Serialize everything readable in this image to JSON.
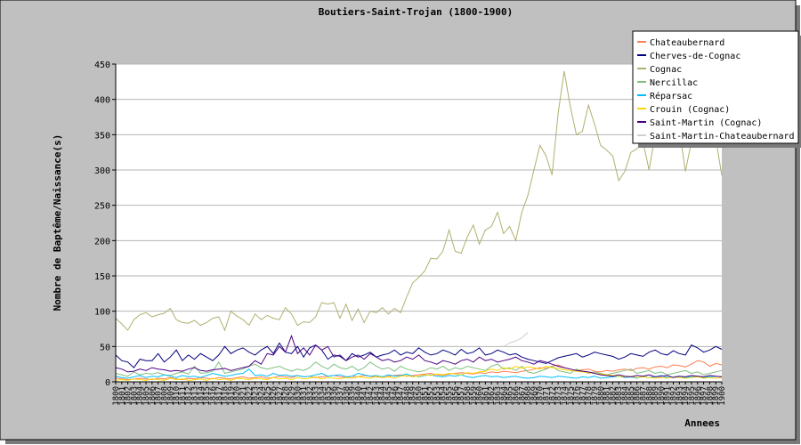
{
  "chart_data": {
    "type": "line",
    "title": "Boutiers-Saint-Trojan (1800-1900)",
    "xlabel": "Annees",
    "ylabel": "Nombre de Baptême/Naissance(s)",
    "ylim": [
      0,
      450
    ],
    "yticks": [
      0,
      50,
      100,
      150,
      200,
      250,
      300,
      350,
      400,
      450
    ],
    "xlim": [
      1800,
      1900
    ],
    "grid": true,
    "legend_position": "top-right",
    "x": [
      1800,
      1801,
      1802,
      1803,
      1804,
      1805,
      1806,
      1807,
      1808,
      1809,
      1810,
      1811,
      1812,
      1813,
      1814,
      1815,
      1816,
      1817,
      1818,
      1819,
      1820,
      1821,
      1822,
      1823,
      1824,
      1825,
      1826,
      1827,
      1828,
      1829,
      1830,
      1831,
      1832,
      1833,
      1834,
      1835,
      1836,
      1837,
      1838,
      1839,
      1840,
      1841,
      1842,
      1843,
      1844,
      1845,
      1846,
      1847,
      1848,
      1849,
      1850,
      1851,
      1852,
      1853,
      1854,
      1855,
      1856,
      1857,
      1858,
      1859,
      1860,
      1861,
      1862,
      1863,
      1864,
      1865,
      1866,
      1867,
      1868,
      1869,
      1870,
      1871,
      1872,
      1873,
      1874,
      1875,
      1876,
      1877,
      1878,
      1879,
      1880,
      1881,
      1882,
      1883,
      1884,
      1885,
      1886,
      1887,
      1888,
      1889,
      1890,
      1891,
      1892,
      1893,
      1894,
      1895,
      1896,
      1897,
      1898,
      1899,
      1900
    ],
    "series": [
      {
        "name": "Chateaubernard",
        "color": "#ff7f50",
        "values": [
          5,
          4,
          3,
          4,
          5,
          4,
          3,
          5,
          4,
          6,
          4,
          3,
          5,
          4,
          6,
          5,
          4,
          6,
          5,
          4,
          6,
          7,
          5,
          6,
          7,
          5,
          6,
          8,
          7,
          6,
          9,
          7,
          8,
          6,
          7,
          8,
          9,
          7,
          6,
          8,
          7,
          9,
          8,
          7,
          6,
          8,
          9,
          10,
          8,
          9,
          10,
          11,
          12,
          10,
          9,
          11,
          12,
          13,
          12,
          11,
          13,
          12,
          14,
          13,
          15,
          14,
          13,
          15,
          16,
          18,
          20,
          19,
          22,
          24,
          20,
          18,
          16,
          17,
          18,
          15,
          14,
          16,
          15,
          17,
          18,
          16,
          19,
          20,
          18,
          21,
          22,
          20,
          24,
          23,
          21,
          25,
          30,
          28,
          22,
          26,
          24
        ]
      },
      {
        "name": "Cherves-de-Cognac",
        "color": "#000080",
        "values": [
          38,
          30,
          28,
          20,
          32,
          30,
          30,
          40,
          28,
          35,
          45,
          30,
          38,
          32,
          40,
          35,
          30,
          38,
          50,
          40,
          45,
          48,
          42,
          38,
          45,
          50,
          40,
          55,
          42,
          40,
          50,
          35,
          48,
          52,
          45,
          32,
          38,
          36,
          30,
          40,
          35,
          38,
          42,
          35,
          38,
          40,
          45,
          38,
          42,
          40,
          48,
          42,
          38,
          40,
          45,
          42,
          38,
          46,
          40,
          42,
          48,
          38,
          40,
          45,
          42,
          38,
          40,
          35,
          32,
          30,
          28,
          26,
          30,
          34,
          36,
          38,
          40,
          35,
          38,
          42,
          40,
          38,
          36,
          32,
          35,
          40,
          38,
          36,
          42,
          45,
          40,
          38,
          44,
          40,
          38,
          52,
          48,
          42,
          45,
          50,
          46
        ]
      },
      {
        "name": "Cognac",
        "color": "#b0b070",
        "values": [
          90,
          82,
          73,
          88,
          95,
          98,
          92,
          95,
          97,
          104,
          88,
          84,
          83,
          87,
          80,
          84,
          90,
          92,
          73,
          100,
          93,
          88,
          80,
          96,
          88,
          94,
          90,
          88,
          105,
          96,
          80,
          85,
          84,
          92,
          112,
          110,
          112,
          90,
          110,
          87,
          103,
          84,
          100,
          98,
          105,
          96,
          104,
          98,
          120,
          140,
          148,
          157,
          175,
          174,
          185,
          215,
          185,
          182,
          205,
          222,
          195,
          215,
          220,
          240,
          210,
          220,
          200,
          240,
          264,
          300,
          335,
          320,
          293,
          380,
          440,
          390,
          350,
          355,
          392,
          365,
          335,
          328,
          320,
          285,
          298,
          325,
          330,
          340,
          300,
          350,
          360,
          342,
          352,
          358,
          298,
          340,
          350,
          355,
          360,
          345,
          292
        ]
      },
      {
        "name": "Nercillac",
        "color": "#80c080",
        "values": [
          12,
          10,
          8,
          14,
          10,
          12,
          11,
          13,
          10,
          9,
          12,
          14,
          11,
          22,
          12,
          13,
          15,
          28,
          12,
          14,
          16,
          18,
          22,
          25,
          20,
          18,
          20,
          22,
          18,
          15,
          18,
          16,
          20,
          28,
          22,
          18,
          25,
          20,
          18,
          22,
          16,
          20,
          28,
          22,
          18,
          20,
          15,
          22,
          18,
          16,
          14,
          16,
          20,
          18,
          22,
          16,
          20,
          18,
          22,
          20,
          18,
          16,
          22,
          25,
          18,
          20,
          16,
          22,
          14,
          12,
          15,
          18,
          22,
          16,
          14,
          12,
          18,
          15,
          12,
          14,
          12,
          10,
          12,
          14,
          16,
          18,
          12,
          14,
          16,
          12,
          14,
          10,
          12,
          14,
          16,
          12,
          14,
          10,
          12,
          14,
          16
        ]
      },
      {
        "name": "Réparsac",
        "color": "#00bfff",
        "values": [
          8,
          6,
          5,
          7,
          9,
          6,
          8,
          7,
          10,
          8,
          6,
          9,
          7,
          8,
          6,
          9,
          12,
          10,
          8,
          9,
          11,
          12,
          18,
          9,
          10,
          8,
          12,
          9,
          10,
          8,
          9,
          7,
          8,
          10,
          12,
          8,
          9,
          10,
          7,
          8,
          12,
          10,
          8,
          9,
          7,
          10,
          8,
          9,
          11,
          8,
          7,
          9,
          10,
          8,
          7,
          9,
          8,
          10,
          7,
          6,
          8,
          9,
          7,
          8,
          6,
          7,
          8,
          6,
          5,
          6,
          8,
          7,
          6,
          8,
          7,
          6,
          5,
          7,
          6,
          8,
          5,
          6,
          7,
          8,
          6,
          7,
          5,
          8,
          6,
          7,
          9,
          6,
          7,
          8,
          6,
          7,
          8,
          6,
          7,
          8,
          7
        ]
      },
      {
        "name": "Crouin (Cognac)",
        "color": "#ffd700",
        "values": [
          2,
          3,
          2,
          4,
          3,
          2,
          4,
          3,
          2,
          5,
          3,
          4,
          2,
          3,
          4,
          2,
          5,
          3,
          4,
          2,
          5,
          4,
          3,
          5,
          4,
          3,
          6,
          4,
          5,
          3,
          6,
          4,
          5,
          7,
          4,
          6,
          5,
          4,
          6,
          5,
          7,
          6,
          5,
          8,
          6,
          7,
          5,
          8,
          9,
          7,
          8,
          10,
          9,
          11,
          10,
          12,
          11,
          10,
          13,
          12,
          14,
          15,
          18,
          16,
          20,
          18,
          22,
          19,
          21,
          20,
          18,
          22,
          20,
          19,
          17,
          16,
          15,
          14,
          13,
          12,
          11,
          10,
          9,
          8,
          7,
          8,
          6,
          7,
          6,
          5,
          6,
          5,
          7,
          6,
          5,
          6,
          7,
          5,
          6,
          5,
          6
        ]
      },
      {
        "name": "Saint-Martin (Cognac)",
        "color": "#4b0082",
        "values": [
          20,
          18,
          14,
          15,
          18,
          16,
          20,
          18,
          17,
          15,
          16,
          15,
          18,
          20,
          16,
          15,
          17,
          18,
          19,
          16,
          18,
          20,
          22,
          30,
          25,
          40,
          38,
          50,
          42,
          65,
          40,
          48,
          38,
          52,
          45,
          50,
          35,
          38,
          30,
          35,
          38,
          32,
          40,
          35,
          30,
          32,
          28,
          30,
          35,
          32,
          38,
          30,
          28,
          25,
          30,
          28,
          25,
          30,
          32,
          28,
          35,
          30,
          32,
          28,
          30,
          32,
          35,
          30,
          28,
          25,
          30,
          28,
          25,
          22,
          20,
          18,
          16,
          15,
          14,
          12,
          10,
          9,
          8,
          10,
          8,
          7,
          9,
          8,
          10,
          7,
          8,
          9,
          6,
          8,
          7,
          9,
          8,
          7,
          9,
          8,
          7
        ]
      },
      {
        "name": "Saint-Martin-Chateaubernard",
        "color": "#d0d0d0",
        "values": [
          null,
          null,
          null,
          null,
          null,
          null,
          null,
          null,
          null,
          null,
          null,
          null,
          null,
          null,
          null,
          null,
          null,
          null,
          null,
          null,
          null,
          null,
          null,
          null,
          null,
          null,
          null,
          null,
          null,
          null,
          null,
          null,
          null,
          null,
          null,
          null,
          null,
          null,
          null,
          null,
          null,
          null,
          null,
          null,
          null,
          null,
          null,
          null,
          null,
          null,
          null,
          null,
          null,
          null,
          null,
          null,
          null,
          null,
          null,
          null,
          null,
          null,
          null,
          null,
          50,
          55,
          58,
          62,
          70,
          null,
          null,
          null,
          null,
          null,
          null,
          null,
          null,
          null,
          null,
          null,
          null,
          null,
          null,
          null,
          null,
          null,
          null,
          null,
          null,
          null,
          null,
          null,
          null,
          null,
          null,
          null,
          null,
          null,
          null,
          null,
          null
        ]
      }
    ]
  }
}
